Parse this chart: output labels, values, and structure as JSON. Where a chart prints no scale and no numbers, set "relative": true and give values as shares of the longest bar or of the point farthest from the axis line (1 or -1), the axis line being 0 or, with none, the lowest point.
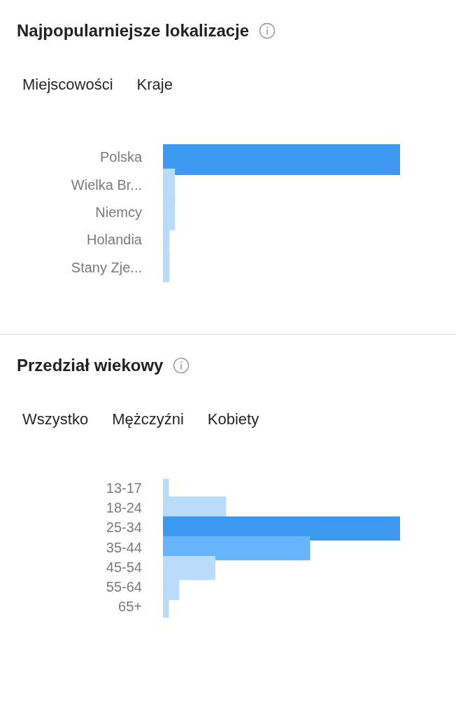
{
  "chart_data": [
    {
      "type": "bar",
      "title": "Najpopularniejsze lokalizacje",
      "annotations": [
        "Miejscowości",
        "Kraje"
      ],
      "orientation": "horizontal",
      "relative": true,
      "categories": [
        "Polska",
        "Wielka Br...",
        "Niemcy",
        "Holandia",
        "Stany Zje..."
      ],
      "values": [
        1,
        0.05,
        0.05,
        0.027,
        0.027
      ],
      "colors": [
        "#3d99f0",
        "#b9dcfb",
        "#b9dcfb",
        "#b9dcfb",
        "#b9dcfb"
      ]
    },
    {
      "type": "bar",
      "title": "Przedział wiekowy",
      "annotations": [
        "Wszystko",
        "Mężczyźni",
        "Kobiety"
      ],
      "orientation": "horizontal",
      "relative": true,
      "categories": [
        "13-17",
        "18-24",
        "25-34",
        "35-44",
        "45-54",
        "55-64",
        "65+"
      ],
      "values": [
        0.024,
        0.265,
        1,
        0.62,
        0.22,
        0.068,
        0.024
      ],
      "colors": [
        "#b9dcfb",
        "#b9dcfb",
        "#3d99f0",
        "#66b5fa",
        "#b9dcfb",
        "#b9dcfb",
        "#b9dcfb"
      ]
    }
  ]
}
